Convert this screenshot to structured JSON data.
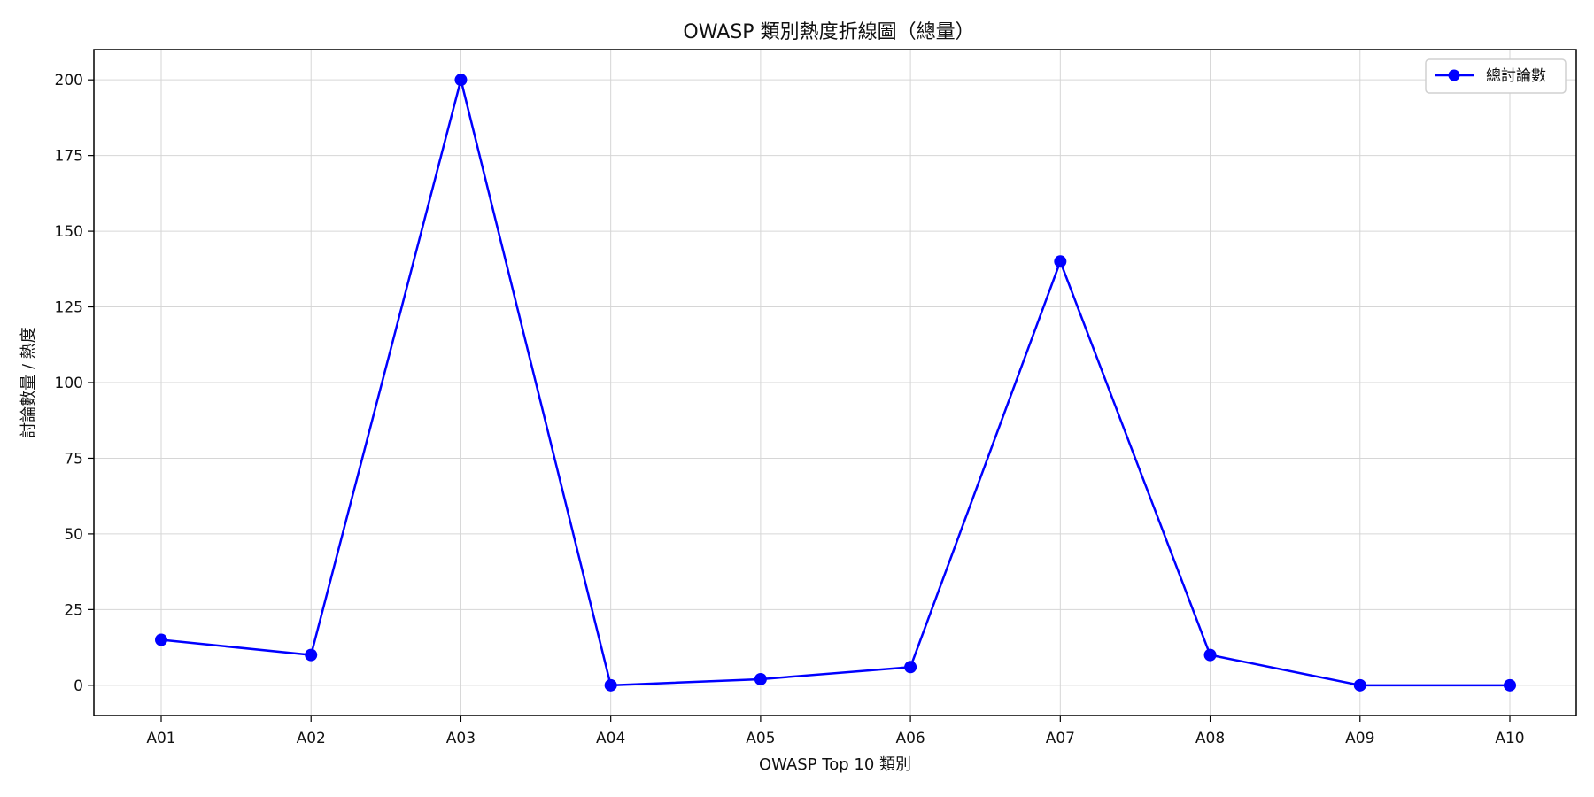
{
  "chart_data": {
    "type": "line",
    "title": "OWASP 類別熱度折線圖（總量）",
    "xlabel": "OWASP Top 10 類別",
    "ylabel": "討論數量 / 熱度",
    "categories": [
      "A01",
      "A02",
      "A03",
      "A04",
      "A05",
      "A06",
      "A07",
      "A08",
      "A09",
      "A10"
    ],
    "series": [
      {
        "name": "總討論數",
        "values": [
          15,
          10,
          200,
          0,
          2,
          6,
          140,
          10,
          0,
          0
        ],
        "color": "#0000ff",
        "marker": "circle"
      }
    ],
    "ylim": [
      -10,
      210
    ],
    "yticks": [
      0,
      25,
      50,
      75,
      100,
      125,
      150,
      175,
      200
    ],
    "grid": true,
    "legend_position": "top-right"
  }
}
